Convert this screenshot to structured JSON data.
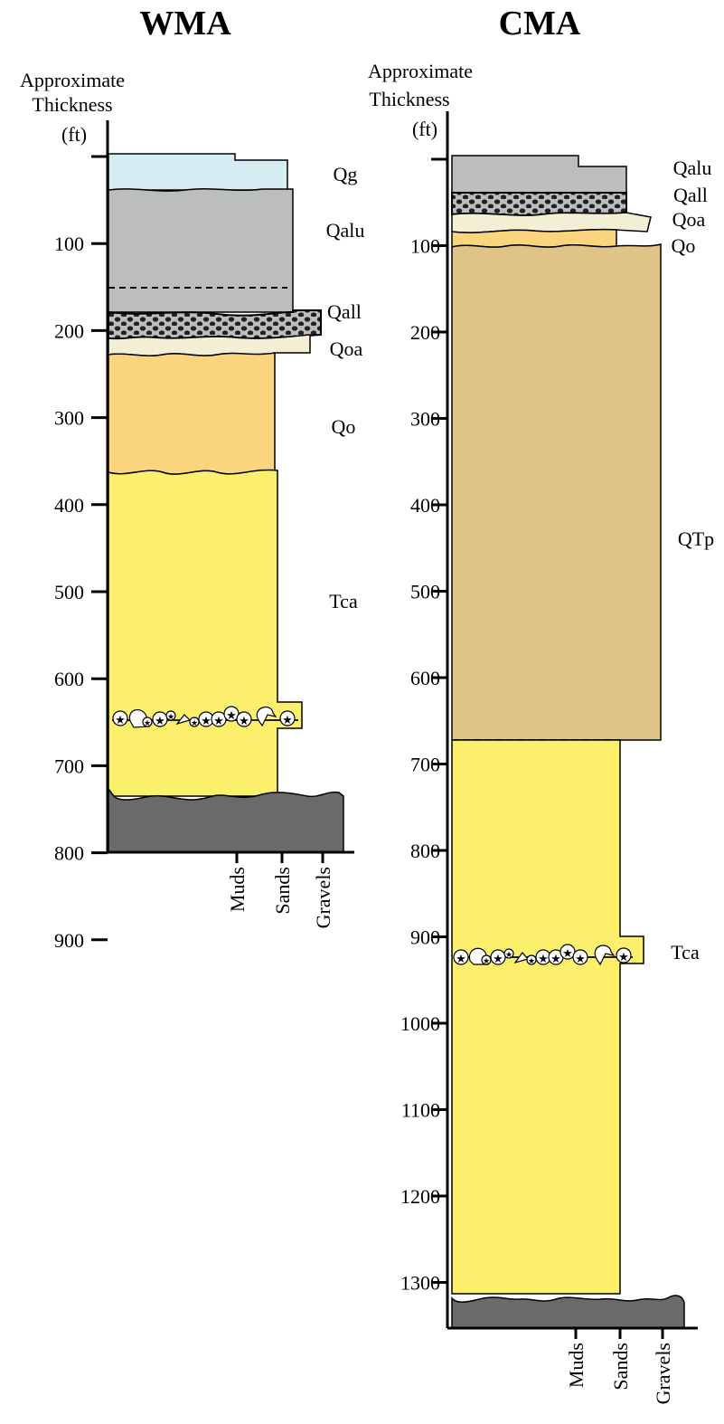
{
  "wma": {
    "title": "WMA",
    "header_line1": "Approximate",
    "header_line2": "Thickness",
    "units": "(ft)",
    "ticks": [
      "100",
      "200",
      "300",
      "400",
      "500",
      "600",
      "700",
      "800",
      "900"
    ],
    "units_labels": [
      "Qg",
      "Qalu",
      "Qall",
      "Qoa",
      "Qo",
      "Tca"
    ],
    "grain_sizes": [
      "Muds",
      "Sands",
      "Gravels"
    ]
  },
  "cma": {
    "title": "CMA",
    "header_line1": "Approximate",
    "header_line2": "Thickness",
    "units": "(ft)",
    "ticks": [
      "100",
      "200",
      "300",
      "400",
      "500",
      "600",
      "700",
      "800",
      "900",
      "1000",
      "1100",
      "1200",
      "1300"
    ],
    "units_labels": [
      "Qalu",
      "Qall",
      "Qoa",
      "Qo",
      "QTp",
      "Tca"
    ],
    "grain_sizes": [
      "Muds",
      "Sands",
      "Gravels"
    ]
  },
  "colors": {
    "Qg": "#d6ecf3",
    "Qalu": "#bcbdbd",
    "Qall": "#bcbdbd",
    "Qoa": "#f3efd4",
    "Qo": "#fad57e",
    "QTp": "#dfc487",
    "Tca": "#fcef6c",
    "basement": "#6b6a68"
  }
}
